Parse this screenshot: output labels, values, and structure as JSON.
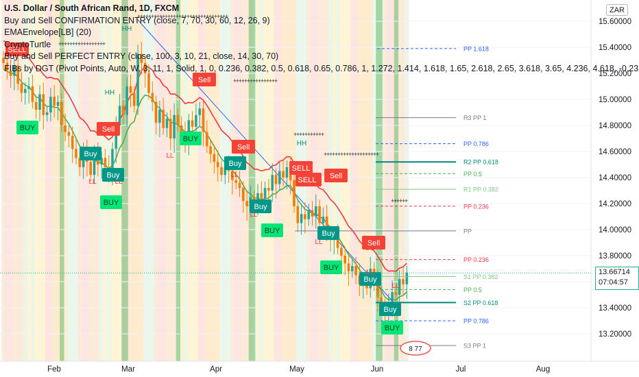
{
  "legend": {
    "title": "U.S. Dollar / South African Rand, 1D, FXCM",
    "lines": [
      "Buy and Sell CONFIRMATION ENTRY (close, 7, 70, 30, 60, 12, 26, 9)",
      "EMAEnvelope[LB] (20)",
      "CryptoTurtle",
      "Buy and Sell PERFECT ENTRY (close, 100, 3, 10, 21, close, 14, 30, 70)",
      "FIBs by DGT (Pivot Points, Auto, W, 3, 11, 1, Solid, 1, 0, 0.236, 0.382, 0.5, 0.618, 0.65, 0.786, 1, 1.272, 1.414, 1.618, 1.65, 2.618, 2.65, 3.618, 3.65, 4.236, 4.618, -0.23"
    ]
  },
  "currency_button": "ZAR",
  "price_label": {
    "price": "13.66714",
    "countdown": "07:04:57"
  },
  "chart_data": {
    "type": "candlestick",
    "x_ticks": [
      "Feb",
      "Mar",
      "Apr",
      "May",
      "Jun",
      "Jul",
      "Aug"
    ],
    "y_ticks": [
      "15.60000",
      "15.40000",
      "15.20000",
      "15.00000",
      "14.80000",
      "14.60000",
      "14.40000",
      "14.20000",
      "14.00000",
      "13.80000",
      "13.60000",
      "13.40000",
      "13.20000"
    ],
    "ylim": [
      13.0,
      15.65
    ],
    "last_price": 13.66714,
    "closes": [
      15.28,
      15.22,
      15.18,
      15.26,
      15.12,
      15.05,
      15.08,
      15.1,
      14.98,
      14.92,
      15.04,
      14.88,
      14.9,
      15.02,
      14.95,
      14.98,
      14.8,
      14.75,
      14.72,
      14.62,
      14.55,
      14.48,
      14.6,
      14.52,
      14.42,
      14.58,
      14.5,
      14.55,
      14.48,
      14.43,
      14.62,
      14.8,
      14.95,
      14.88,
      15.1,
      15.05,
      14.95,
      15.35,
      15.28,
      15.2,
      15.05,
      14.98,
      14.82,
      14.92,
      14.78,
      14.85,
      14.7,
      14.88,
      14.8,
      14.74,
      14.68,
      14.84,
      14.79,
      14.88,
      14.93,
      14.75,
      14.64,
      14.58,
      14.52,
      14.48,
      14.42,
      14.48,
      14.45,
      14.38,
      14.36,
      14.32,
      14.22,
      14.18,
      14.25,
      14.2,
      14.28,
      14.24,
      14.32,
      14.3,
      14.42,
      14.35,
      14.45,
      14.4,
      14.48,
      14.38,
      14.18,
      14.05,
      14.12,
      14.08,
      14.15,
      14.1,
      14.18,
      14.05,
      14.1,
      13.98,
      13.92,
      13.95,
      13.86,
      13.8,
      13.74,
      13.68,
      13.72,
      13.65,
      13.58,
      13.62,
      13.55,
      13.7,
      13.62,
      13.48,
      13.42,
      13.36,
      13.44,
      13.52,
      13.5,
      13.62,
      13.58,
      13.67
    ],
    "annotations": [
      {
        "text": "SELL",
        "kind": "sell",
        "date_index": 5
      },
      {
        "text": "Sell",
        "kind": "sell",
        "date_index": 33
      },
      {
        "text": "Sell",
        "kind": "sell",
        "date_index": 37
      },
      {
        "text": "SELL",
        "kind": "sell",
        "date_index": 39
      },
      {
        "text": "SELL",
        "kind": "sell",
        "date_index": 60
      },
      {
        "text": "Sell",
        "kind": "sell",
        "date_index": 70
      },
      {
        "text": "Sell",
        "kind": "sell",
        "date_index": 87
      },
      {
        "text": "SELL",
        "kind": "sell",
        "date_index": 90
      },
      {
        "text": "SELL",
        "kind": "sell",
        "date_index": 96
      },
      {
        "text": "Sell",
        "kind": "sell",
        "date_index": 106
      },
      {
        "text": "BUY",
        "kind": "buy",
        "date_index": 6
      },
      {
        "text": "Buy",
        "kind": "buy",
        "date_index": 16
      },
      {
        "text": "Buy",
        "kind": "buy",
        "date_index": 21
      },
      {
        "text": "BUY",
        "kind": "buy",
        "date_index": 21
      },
      {
        "text": "BUY",
        "kind": "buy",
        "date_index": 35
      },
      {
        "text": "Buy",
        "kind": "buy",
        "date_index": 45
      },
      {
        "text": "Buy",
        "kind": "buy",
        "date_index": 49
      },
      {
        "text": "BUY",
        "kind": "buy",
        "date_index": 52
      },
      {
        "text": "Buy",
        "kind": "buy",
        "date_index": 62
      },
      {
        "text": "BUY",
        "kind": "buy",
        "date_index": 67
      },
      {
        "text": "Buy",
        "kind": "buy",
        "date_index": 70
      },
      {
        "text": "Buy",
        "kind": "buy",
        "date_index": 75
      },
      {
        "text": "BUY",
        "kind": "buy",
        "date_index": 79
      },
      {
        "text": "Buy",
        "kind": "buy",
        "date_index": 83
      },
      {
        "text": "Buy",
        "kind": "buy",
        "date_index": 86
      },
      {
        "text": "BUY",
        "kind": "buy",
        "date_index": 88
      },
      {
        "text": "HH",
        "kind": "hh",
        "date_index": 20
      },
      {
        "text": "HH",
        "kind": "hh",
        "date_index": 22
      },
      {
        "text": "HH",
        "kind": "hh",
        "date_index": 55
      },
      {
        "text": "LL",
        "kind": "ll",
        "date_index": 16
      },
      {
        "text": "LL",
        "kind": "ll",
        "date_index": 21
      },
      {
        "text": "LL",
        "kind": "ll",
        "date_index": 32
      },
      {
        "text": "LL",
        "kind": "ll",
        "date_index": 38
      },
      {
        "text": "LL",
        "kind": "ll",
        "date_index": 45
      },
      {
        "text": "LL",
        "kind": "ll",
        "date_index": 58
      },
      {
        "text": "LL",
        "kind": "ll",
        "date_index": 68
      },
      {
        "text": "LL",
        "kind": "ll",
        "date_index": 72
      }
    ],
    "pivot_levels": [
      {
        "label": "PP 1.618",
        "value": 15.39,
        "color": "#2962ff",
        "style": "dashed",
        "short": true
      },
      {
        "label": "R3 PP 1",
        "value": 14.86,
        "color": "#787b86",
        "style": "solid",
        "short": false
      },
      {
        "label": "PP 0.786",
        "value": 14.66,
        "color": "#2962ff",
        "style": "dashed",
        "short": false
      },
      {
        "label": "R2 PP 0.618",
        "value": 14.52,
        "color": "#00897b",
        "style": "solid",
        "short": false
      },
      {
        "label": "PP 0.5",
        "value": 14.43,
        "color": "#4caf50",
        "style": "dashed",
        "short": false
      },
      {
        "label": "R1 PP 0.382",
        "value": 14.31,
        "color": "#81c784",
        "style": "solid",
        "short": false
      },
      {
        "label": "PP 0.236",
        "value": 14.18,
        "color": "#f23645",
        "style": "dashed",
        "short": false
      },
      {
        "label": "PP",
        "value": 13.99,
        "color": "#787b86",
        "style": "solid",
        "short": false
      },
      {
        "label": "PP 0.236",
        "value": 13.77,
        "color": "#f23645",
        "style": "dashed",
        "short": false
      },
      {
        "label": "S1 PP 0.382",
        "value": 13.64,
        "color": "#81c784",
        "style": "solid",
        "short": false
      },
      {
        "label": "PP 0.5",
        "value": 13.54,
        "color": "#4caf50",
        "style": "dashed",
        "short": false
      },
      {
        "label": "S2 PP 0.618",
        "value": 13.44,
        "color": "#00897b",
        "style": "solid",
        "short": false
      },
      {
        "label": "PP 0.786",
        "value": 13.3,
        "color": "#2962ff",
        "style": "dashed",
        "short": false
      },
      {
        "label": "S3 PP 1",
        "value": 13.11,
        "color": "#787b86",
        "style": "solid",
        "short": false
      }
    ],
    "event_badge_text": "8 77",
    "colors": {
      "up": "#26a69a",
      "down": "#ef5350",
      "ema_upper": "#f23645",
      "ema_lower": "#4caf50",
      "buy_box": "#00e676",
      "sell_box": "#f44336",
      "teal_box": "#009688"
    }
  }
}
